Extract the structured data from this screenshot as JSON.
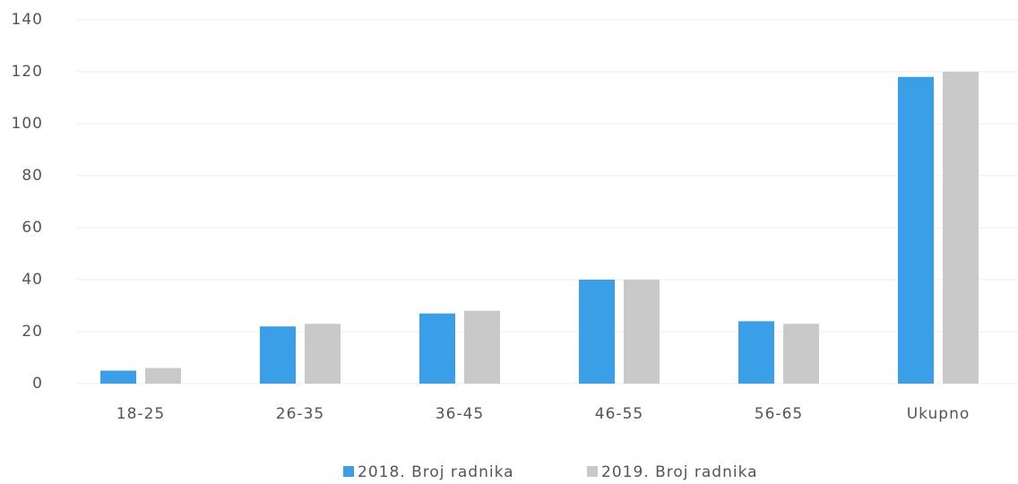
{
  "chart_data": {
    "type": "bar",
    "categories": [
      "18-25",
      "26-35",
      "36-45",
      "46-55",
      "56-65",
      "Ukupno"
    ],
    "series": [
      {
        "name": "2018. Broj radnika",
        "color": "#3a9fe6",
        "values": [
          5,
          22,
          27,
          40,
          24,
          118
        ]
      },
      {
        "name": "2019. Broj radnika",
        "color": "#c9c9c9",
        "values": [
          6,
          23,
          28,
          40,
          23,
          120
        ]
      }
    ],
    "ylim": [
      0,
      140
    ],
    "yticks": [
      0,
      20,
      40,
      60,
      80,
      100,
      120,
      140
    ],
    "grid": true,
    "legend": "bottom"
  }
}
